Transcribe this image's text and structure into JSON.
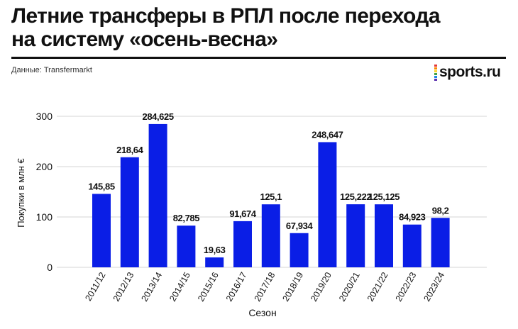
{
  "header": {
    "title_line1": "Летние трансферы в РПЛ после перехода",
    "title_line2": "на систему «осень-весна»",
    "source": "Данные: Transfermarkt",
    "logo_text": "sports.ru",
    "logo_colors": [
      "#e53935",
      "#fb8c00",
      "#fdd835",
      "#43a047",
      "#1e88e5",
      "#5e35b1"
    ]
  },
  "chart_data": {
    "type": "bar",
    "title": "Летние трансферы в РПЛ после перехода на систему «осень-весна»",
    "xlabel": "Сезон",
    "ylabel": "Покупки в млн €",
    "categories": [
      "2011/12",
      "2012/13",
      "2013/14",
      "2014/15",
      "2015/16",
      "2016/17",
      "2017/18",
      "2018/19",
      "2019/20",
      "2020/21",
      "2021/22",
      "2022/23",
      "2023/24"
    ],
    "values": [
      145.85,
      218.64,
      284.625,
      82.785,
      19.63,
      91.674,
      125.1,
      67.934,
      248.647,
      125.222,
      125.125,
      84.923,
      98.2
    ],
    "value_labels": [
      "145,85",
      "218,64",
      "284,625",
      "82,785",
      "19,63",
      "91,674",
      "125,1",
      "67,934",
      "248,647",
      "125,222",
      "125,125",
      "84,923",
      "98,2"
    ],
    "yticks": [
      0,
      100,
      200,
      300
    ],
    "ylim": [
      0,
      300
    ],
    "grid": true,
    "bar_color": "#0a1ee6"
  }
}
